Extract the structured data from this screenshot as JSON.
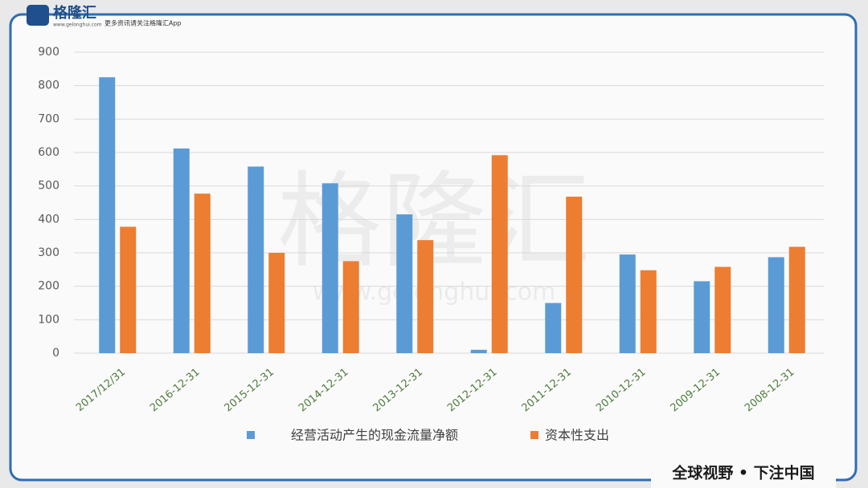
{
  "header": {
    "logo": "格隆汇",
    "site": "www.gelonghui.com",
    "tagline": "更多资讯请关注格隆汇App"
  },
  "watermark": {
    "name": "格隆汇",
    "site": "www.gelonghui.com"
  },
  "footer": "全球视野 • 下注中国",
  "chart_data": {
    "type": "bar",
    "categories": [
      "2017/12/31",
      "2016-12-31",
      "2015-12-31",
      "2014-12-31",
      "2013-12-31",
      "2012-12-31",
      "2011-12-31",
      "2010-12-31",
      "2009-12-31",
      "2008-12-31"
    ],
    "series": [
      {
        "name": "经营活动产生的现金流量净额",
        "color": "#5b9bd5",
        "values": [
          825,
          612,
          558,
          508,
          415,
          10,
          150,
          295,
          215,
          287
        ]
      },
      {
        "name": "资本性支出",
        "color": "#ed7d31",
        "values": [
          378,
          477,
          300,
          275,
          338,
          592,
          468,
          248,
          258,
          318
        ]
      }
    ],
    "ylim": [
      0,
      900
    ],
    "yticks": [
      0,
      100,
      200,
      300,
      400,
      500,
      600,
      700,
      800,
      900
    ],
    "grid": true,
    "legend": "bottom"
  }
}
